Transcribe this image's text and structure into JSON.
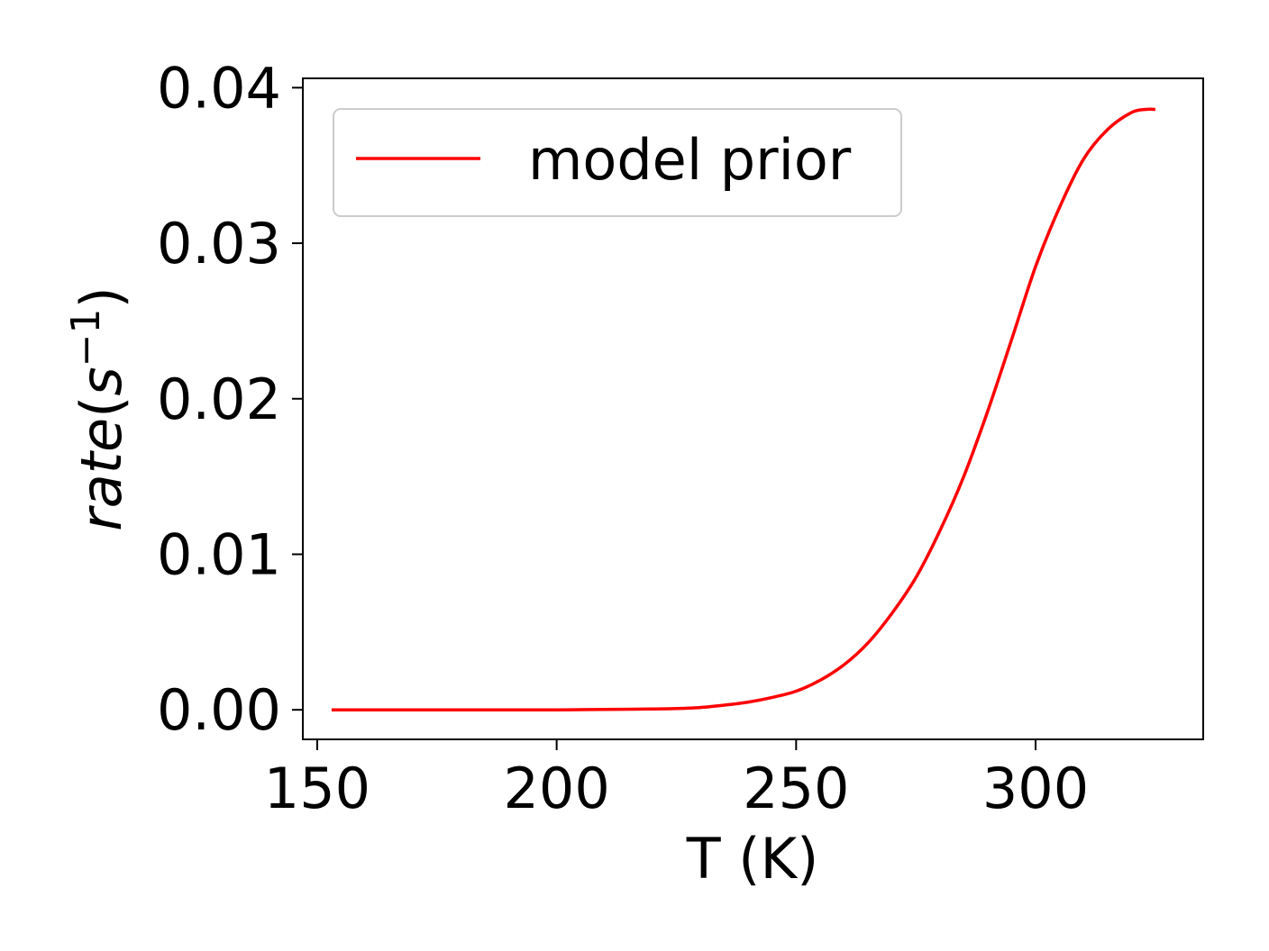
{
  "chart_data": {
    "type": "line",
    "title": "",
    "xlabel": "T (K)",
    "ylabel_parts": {
      "base": "rate",
      "open": "(",
      "var": "s",
      "exp": "−1",
      "close": ")"
    },
    "xlim": [
      147,
      335
    ],
    "ylim": [
      -0.0019,
      0.0406
    ],
    "xticks": [
      150,
      200,
      250,
      300
    ],
    "xtick_labels": [
      "150",
      "200",
      "250",
      "300"
    ],
    "yticks": [
      0.0,
      0.01,
      0.02,
      0.03,
      0.04
    ],
    "ytick_labels": [
      "0.00",
      "0.01",
      "0.02",
      "0.03",
      "0.04"
    ],
    "grid": false,
    "legend_position": "upper-left",
    "series": [
      {
        "name": "model prior",
        "color": "#ff0000",
        "x": [
          153,
          160,
          170,
          180,
          190,
          200,
          210,
          220,
          225,
          230,
          235,
          240,
          245,
          250,
          255,
          260,
          265,
          270,
          275,
          280,
          285,
          290,
          295,
          300,
          305,
          310,
          315,
          320,
          323,
          325
        ],
        "y": [
          0.0,
          0.0,
          0.0,
          0.0,
          0.0,
          0.0,
          2e-05,
          5e-05,
          8e-05,
          0.00015,
          0.0003,
          0.0005,
          0.0008,
          0.0012,
          0.0019,
          0.0029,
          0.0043,
          0.0062,
          0.0085,
          0.0115,
          0.015,
          0.0192,
          0.0238,
          0.0285,
          0.0323,
          0.0354,
          0.0373,
          0.0384,
          0.0386,
          0.0386
        ]
      }
    ]
  }
}
